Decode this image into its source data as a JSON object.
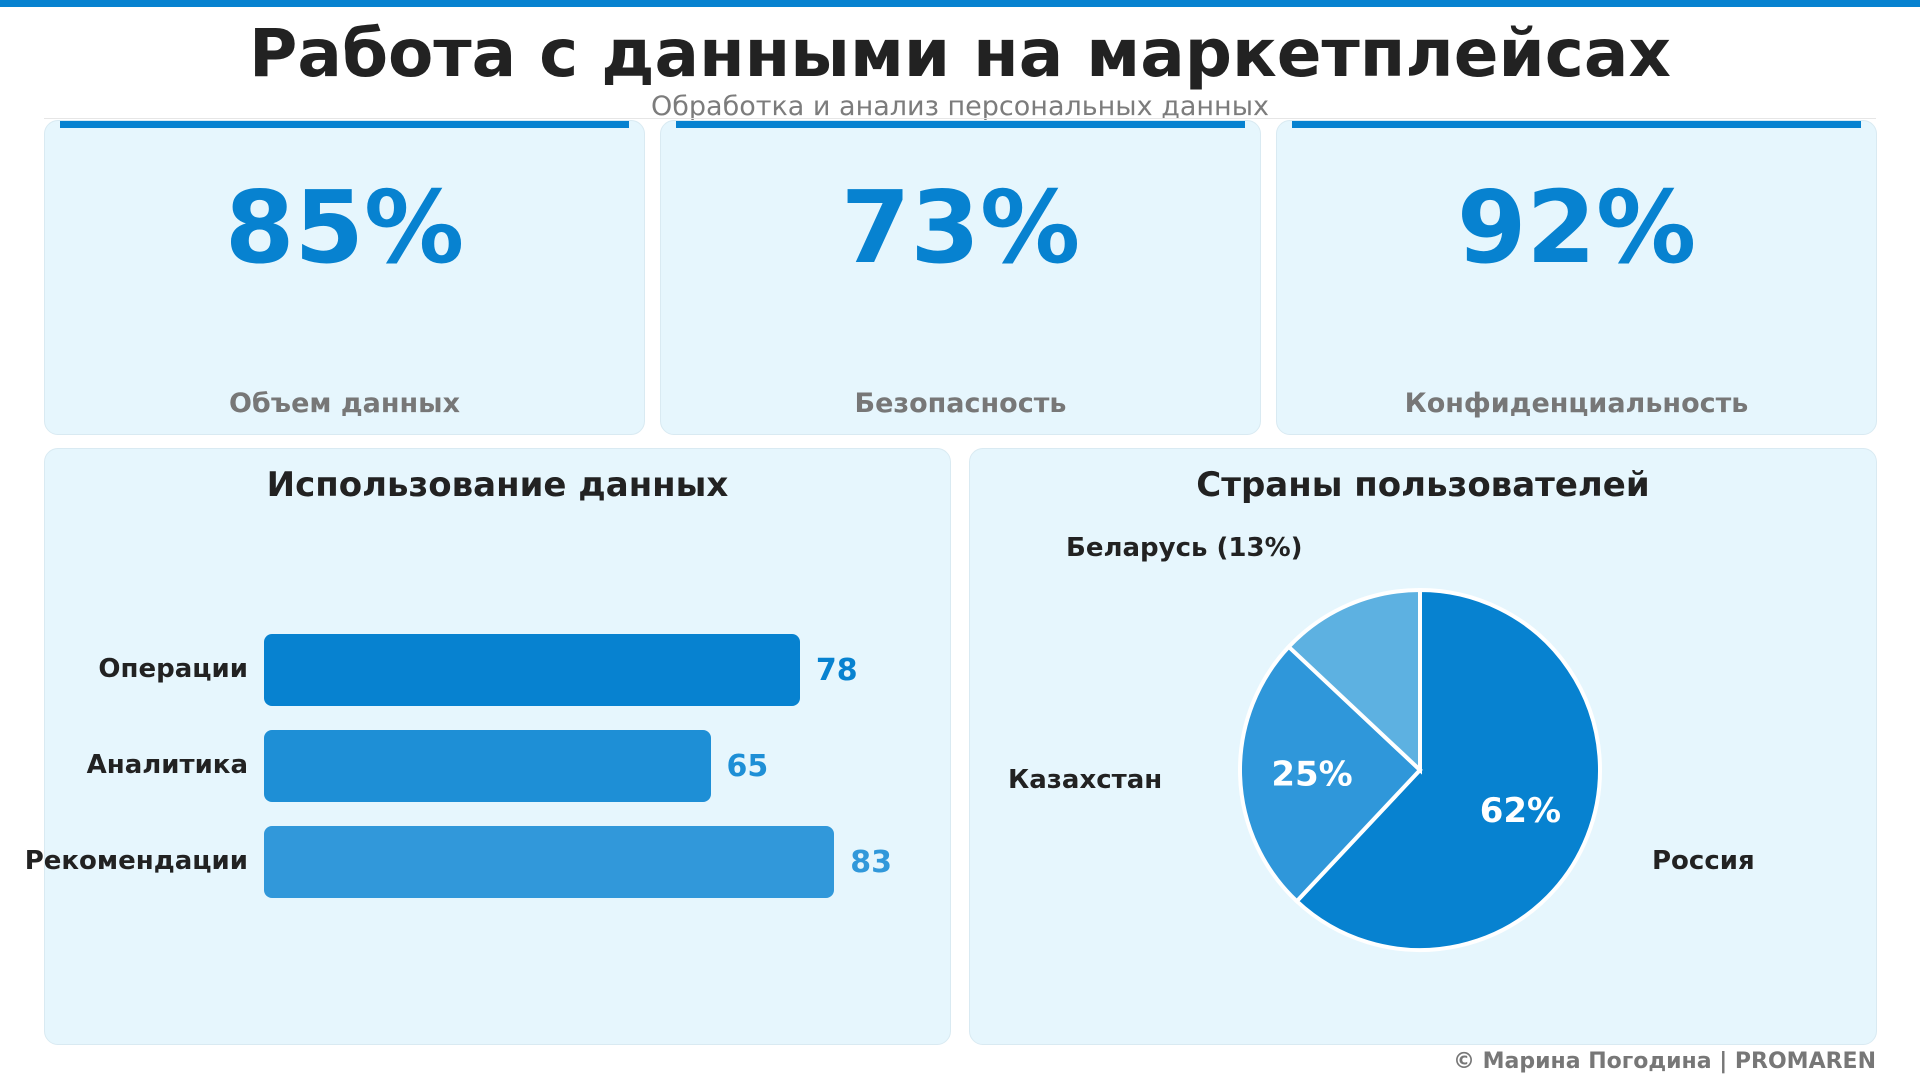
{
  "header": {
    "title": "Работа с данными на маркетплейсах",
    "subtitle": "Обработка и анализ персональных данных"
  },
  "kpis": [
    {
      "value": "85%",
      "label": "Объем данных"
    },
    {
      "value": "73%",
      "label": "Безопасность"
    },
    {
      "value": "92%",
      "label": "Конфиденциальность"
    }
  ],
  "bar_panel": {
    "title": "Использование данных"
  },
  "pie_panel": {
    "title": "Страны пользователей"
  },
  "footer": {
    "text": "© Марина Погодина | PROMAREN"
  },
  "colors": {
    "accent": "#0782d0",
    "bar_1": "#0782d0",
    "bar_2": "#1e8fd6",
    "bar_3": "#3198da",
    "pie_russia": "#0782d0",
    "pie_kazakhstan": "#2f97da",
    "pie_belarus": "#5db1e1",
    "card_bg": "#e6f6fd"
  },
  "chart_data": [
    {
      "type": "bar",
      "orientation": "horizontal",
      "title": "Использование данных",
      "categories": [
        "Операции",
        "Аналитика",
        "Рекомендации"
      ],
      "values": [
        78,
        65,
        83
      ],
      "value_labels": [
        "78",
        "65",
        "83"
      ],
      "xlim": [
        0,
        100
      ],
      "grid": false,
      "legend": "none"
    },
    {
      "type": "pie",
      "title": "Страны пользователей",
      "slices": [
        {
          "label": "Россия",
          "value": 62,
          "display": "62%",
          "external_label": "Россия"
        },
        {
          "label": "Казахстан",
          "value": 25,
          "display": "25%",
          "external_label": "Казахстан"
        },
        {
          "label": "Беларусь",
          "value": 13,
          "display": "",
          "external_label": "Беларусь (13%)"
        }
      ],
      "legend": "none"
    }
  ]
}
